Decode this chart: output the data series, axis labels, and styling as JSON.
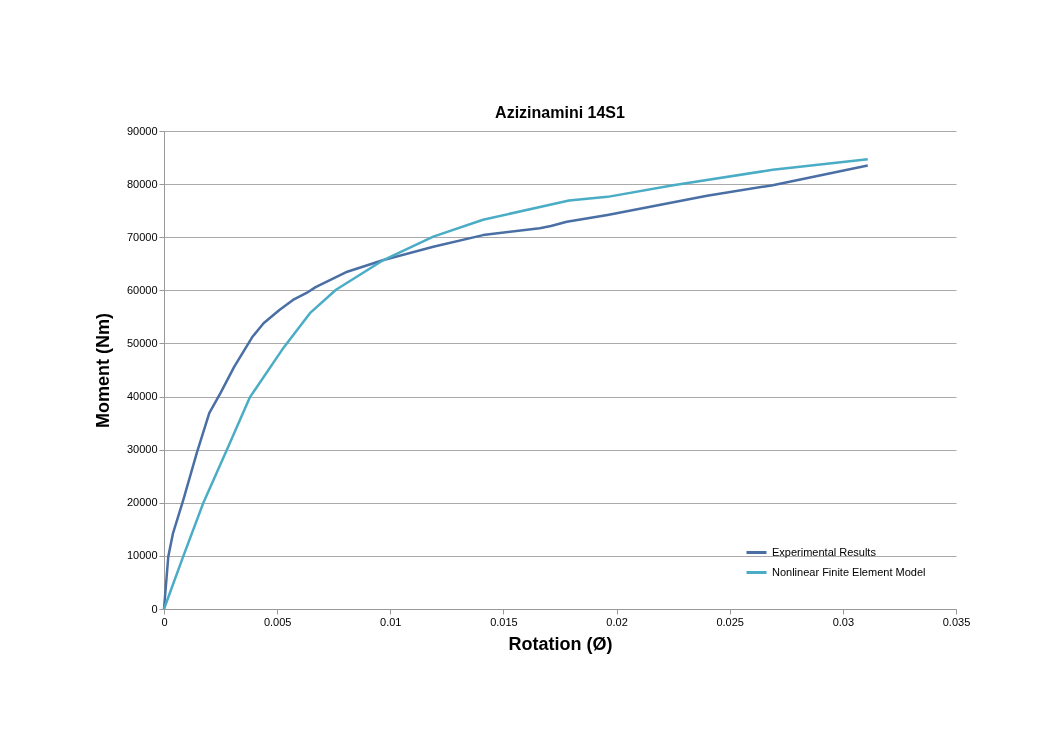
{
  "chart_data": {
    "type": "line",
    "title": "Azizinamini 14S1",
    "xlabel": "Rotation (Ø)",
    "ylabel": "Moment (Nm)",
    "xlim": [
      0,
      0.035
    ],
    "xticks": [
      0,
      0.005,
      0.01,
      0.015,
      0.02,
      0.025,
      0.03,
      0.035
    ],
    "ylim": [
      0,
      90000
    ],
    "yticks": [
      0,
      10000,
      20000,
      30000,
      40000,
      50000,
      60000,
      70000,
      80000,
      90000
    ],
    "grid": "y",
    "legend": "bottom right",
    "marker": "none",
    "line_style": "solid",
    "series": [
      {
        "name": "Experimental Results",
        "color": "#4a6fa5",
        "x": [
          0,
          0.00019,
          0.0004,
          0.00085,
          0.00145,
          0.002,
          0.0025,
          0.0031,
          0.0039,
          0.0044,
          0.0051,
          0.0057,
          0.0063,
          0.0067,
          0.0081,
          0.0097,
          0.0119,
          0.0141,
          0.0166,
          0.0171,
          0.0178,
          0.0196,
          0.024,
          0.0269,
          0.0311
        ],
        "values": [
          0,
          9900,
          14300,
          20500,
          29400,
          36900,
          40700,
          45600,
          51200,
          53800,
          56300,
          58200,
          59500,
          60600,
          63500,
          65700,
          68200,
          70400,
          71700,
          72100,
          72900,
          74200,
          77800,
          79800,
          83500
        ]
      },
      {
        "name": "Nonlinear Finite Element Model",
        "color": "#4bacc6",
        "x": [
          0,
          0.00085,
          0.00174,
          0.00277,
          0.0038,
          0.0053,
          0.00645,
          0.0076,
          0.0097,
          0.0119,
          0.0141,
          0.0179,
          0.0196,
          0.0225,
          0.0269,
          0.0311
        ],
        "values": [
          0,
          9900,
          20000,
          29900,
          39900,
          49300,
          55700,
          60100,
          65700,
          70100,
          73300,
          76900,
          77600,
          79800,
          82700,
          84700
        ]
      }
    ]
  }
}
